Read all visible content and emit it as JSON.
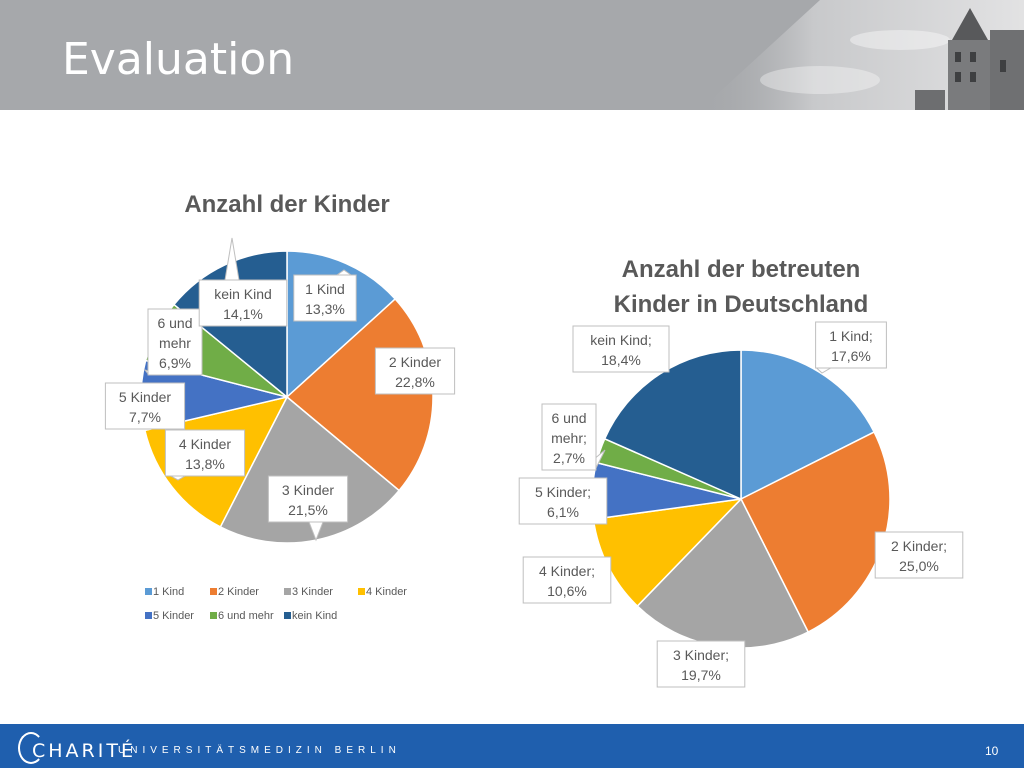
{
  "slide": {
    "title": "Evaluation",
    "page_number": "10",
    "footer": {
      "logo": "CHARITÉ",
      "tagline": "UNIVERSITÄTSMEDIZIN BERLIN"
    }
  },
  "colors": {
    "header_bg": "#a6a8ab",
    "footer_bg": "#1f5fae",
    "series": [
      "#5b9bd5",
      "#ed7d31",
      "#a5a5a5",
      "#ffc000",
      "#4472c4",
      "#70ad47",
      "#255e91"
    ]
  },
  "chart_data": [
    {
      "type": "pie",
      "title": "Anzahl der Kinder",
      "categories": [
        "1 Kind",
        "2 Kinder",
        "3 Kinder",
        "4 Kinder",
        "5 Kinder",
        "6 und mehr",
        "kein Kind"
      ],
      "values": [
        13.3,
        22.8,
        21.5,
        13.8,
        7.7,
        6.9,
        14.1
      ],
      "data_labels": [
        [
          "1 Kind",
          "13,3%"
        ],
        [
          "2 Kinder",
          "22,8%"
        ],
        [
          "3 Kinder",
          "21,5%"
        ],
        [
          "4 Kinder",
          "13,8%"
        ],
        [
          "5 Kinder",
          "7,7%"
        ],
        [
          "6 und",
          "mehr",
          "6,9%"
        ],
        [
          "kein Kind",
          "14,1%"
        ]
      ],
      "legend": [
        "1 Kind",
        "2 Kinder",
        "3 Kinder",
        "4 Kinder",
        "5 Kinder",
        "6 und mehr",
        "kein Kind"
      ],
      "legend_position": "bottom"
    },
    {
      "type": "pie",
      "title": [
        "Anzahl der betreuten",
        "Kinder in Deutschland"
      ],
      "categories": [
        "1 Kind",
        "2 Kinder",
        "3 Kinder",
        "4 Kinder",
        "5 Kinder",
        "6 und mehr",
        "kein Kind"
      ],
      "values": [
        17.6,
        25.0,
        19.7,
        10.6,
        6.1,
        2.7,
        18.4
      ],
      "data_labels": [
        [
          "1 Kind;",
          "17,6%"
        ],
        [
          "2 Kinder;",
          "25,0%"
        ],
        [
          "3 Kinder;",
          "19,7%"
        ],
        [
          "4 Kinder;",
          "10,6%"
        ],
        [
          "5 Kinder;",
          "6,1%"
        ],
        [
          "6 und",
          "mehr;",
          "2,7%"
        ],
        [
          "kein Kind;",
          "18,4%"
        ]
      ],
      "legend_position": "none"
    }
  ]
}
